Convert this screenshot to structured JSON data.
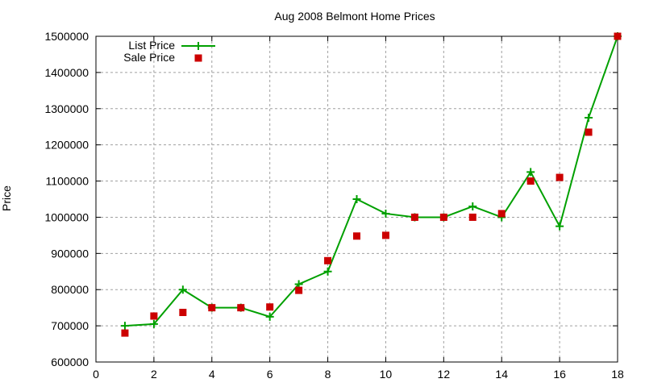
{
  "chart_data": {
    "type": "line",
    "title": "Aug 2008 Belmont Home Prices",
    "xlabel": "",
    "ylabel": "Price",
    "xlim": [
      0,
      18
    ],
    "ylim": [
      600000,
      1500000
    ],
    "x_ticks": [
      0,
      2,
      4,
      6,
      8,
      10,
      12,
      14,
      16,
      18
    ],
    "y_ticks": [
      600000,
      700000,
      800000,
      900000,
      1000000,
      1100000,
      1200000,
      1300000,
      1400000,
      1500000
    ],
    "grid": true,
    "legend_position": "top-left",
    "x": [
      1,
      2,
      3,
      4,
      5,
      6,
      7,
      8,
      9,
      10,
      11,
      12,
      13,
      14,
      15,
      16,
      17,
      18
    ],
    "series": [
      {
        "name": "List Price",
        "style": "linespoints",
        "marker": "plus",
        "color": "#00a000",
        "values": [
          700000,
          705000,
          800000,
          750000,
          750000,
          725000,
          815000,
          850000,
          1050000,
          1010000,
          1000000,
          1000000,
          1030000,
          1000000,
          1125000,
          975000,
          1275000,
          1500000
        ]
      },
      {
        "name": "Sale Price",
        "style": "points",
        "marker": "square",
        "color": "#cc0000",
        "values": [
          680000,
          727000,
          737000,
          750000,
          750000,
          752000,
          798000,
          880000,
          948000,
          950000,
          1000000,
          1000000,
          1000000,
          1010000,
          1100000,
          1110000,
          1235000,
          1500000
        ]
      }
    ]
  }
}
